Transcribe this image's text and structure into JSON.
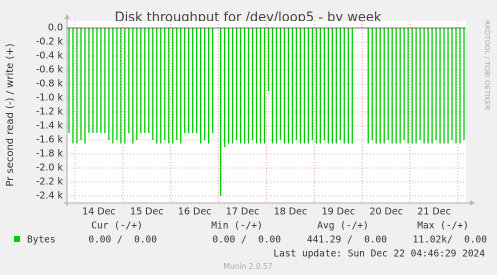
{
  "chart_data": {
    "type": "bar",
    "title": "Disk throughput for /dev/loop5 - by week",
    "y_label": "Pr second read (-) / write (+)",
    "watermark": "RRDTOOL / TOBI OETIKER",
    "footer": "Munin 2.0.57",
    "last_update": "Last update: Sun Dec 22 04:46:29 2024",
    "categories": [
      null,
      null,
      null,
      null,
      null,
      null,
      null,
      null,
      "14 Dec",
      null,
      null,
      null,
      null,
      null,
      null,
      null,
      null,
      null,
      null,
      null,
      "15 Dec",
      null,
      null,
      null,
      null,
      null,
      null,
      null,
      null,
      null,
      null,
      null,
      "16 Dec",
      null,
      null,
      null,
      null,
      null,
      null,
      null,
      null,
      null,
      null,
      null,
      "17 Dec",
      null,
      null,
      null,
      null,
      null,
      null,
      null,
      null,
      null,
      null,
      null,
      "18 Dec",
      null,
      null,
      null,
      null,
      null,
      null,
      null,
      null,
      null,
      null,
      null,
      "19 Dec",
      null,
      null,
      null,
      null,
      null,
      null,
      null,
      null,
      null,
      null,
      null,
      "20 Dec",
      null,
      null,
      null,
      null,
      null,
      null,
      null,
      null,
      null,
      null,
      null,
      "21 Dec",
      null,
      null,
      null,
      null,
      null,
      null,
      null
    ],
    "series": [
      {
        "name": "Bytes",
        "color": "#00cc00",
        "values": [
          -1500,
          -1650,
          -1650,
          -1600,
          -1650,
          -1500,
          -1500,
          -1500,
          -1500,
          -1500,
          -1600,
          -1650,
          -1600,
          -1650,
          -1650,
          -1500,
          -1650,
          -1600,
          -1500,
          -1500,
          -1500,
          -1600,
          -1650,
          -1650,
          -1600,
          -1650,
          -1650,
          -1600,
          -1650,
          -1500,
          -1500,
          -1500,
          -1500,
          -1650,
          -1600,
          -1650,
          -1500,
          0,
          -2400,
          -1700,
          -1650,
          -1650,
          -1600,
          -1650,
          -1650,
          -1650,
          -1600,
          -1650,
          -1650,
          -1650,
          -900,
          -1650,
          -1650,
          -1600,
          -1650,
          -1650,
          -1650,
          -1600,
          -1650,
          -1650,
          -1650,
          -1600,
          -1650,
          -1650,
          -1600,
          -1650,
          -1650,
          -1650,
          -1600,
          -1650,
          -1650,
          -1650,
          0,
          0,
          0,
          -1650,
          -1600,
          -1650,
          -1650,
          -1650,
          -1600,
          -1650,
          -1650,
          -1650,
          -1600,
          -1650,
          -1650,
          -1650,
          -1600,
          -1650,
          -1650,
          -1650,
          -1600,
          -1650,
          -1650,
          -1650,
          -1600,
          -1650,
          -1650,
          -1600
        ]
      }
    ],
    "ylim": [
      -2500,
      100
    ],
    "yticks": [
      {
        "value": 0,
        "label": "0.0"
      },
      {
        "value": -200,
        "label": "-0.2 k"
      },
      {
        "value": -400,
        "label": "-0.4 k"
      },
      {
        "value": -600,
        "label": "-0.6 k"
      },
      {
        "value": -800,
        "label": "-0.8 k"
      },
      {
        "value": -1000,
        "label": "-1.0 k"
      },
      {
        "value": -1200,
        "label": "-1.2 k"
      },
      {
        "value": -1400,
        "label": "-1.4 k"
      },
      {
        "value": -1600,
        "label": "-1.6 k"
      },
      {
        "value": -1800,
        "label": "-1.8 k"
      },
      {
        "value": -2000,
        "label": "-2.0 k"
      },
      {
        "value": -2200,
        "label": "-2.2 k"
      },
      {
        "value": -2400,
        "label": "-2.4 k"
      }
    ],
    "grid": true,
    "legend_table": {
      "headers": [
        "Cur (-/+)",
        "Min (-/+)",
        "Avg (-/+)",
        "Max (-/+)"
      ],
      "rows": [
        [
          "0.00 /  0.00",
          "0.00 /  0.00",
          "441.29 /  0.00",
          "11.02k/  0.00"
        ]
      ]
    }
  }
}
